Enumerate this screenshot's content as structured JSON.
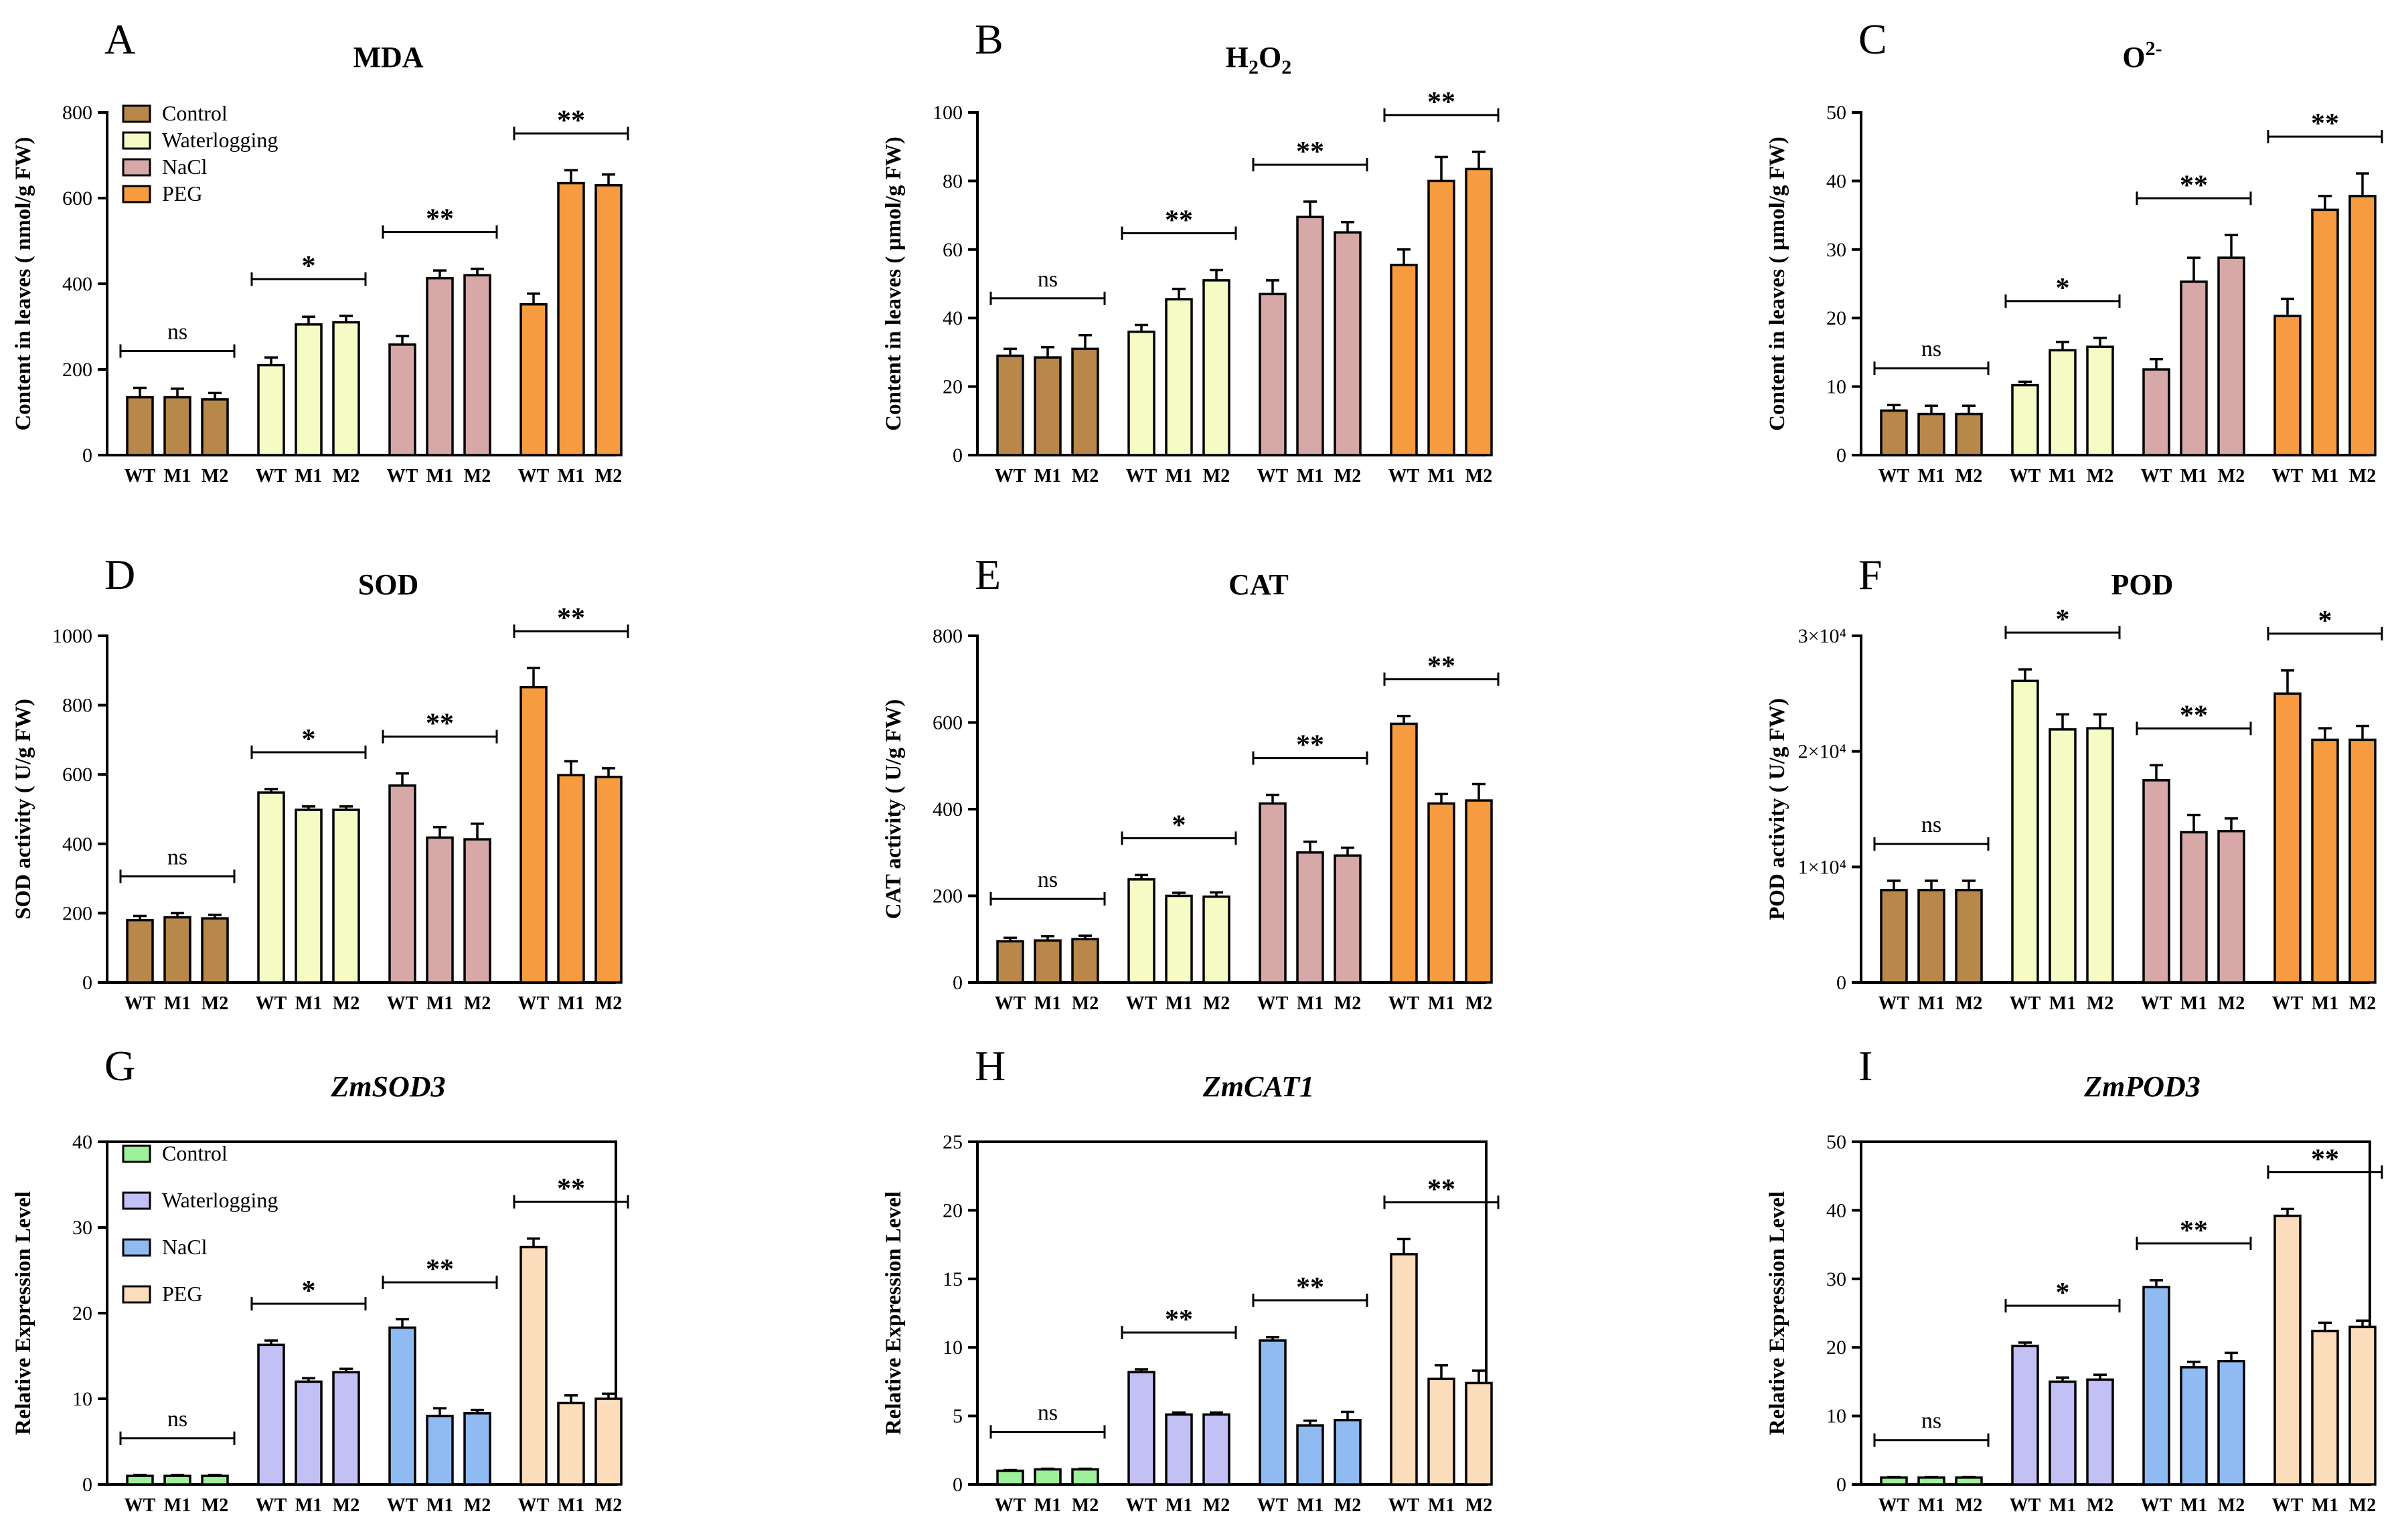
{
  "chart_data": [
    {
      "type": "bar",
      "panel": "A",
      "title": "MDA",
      "ylabel": "Content in leaves ( nmol/g FW)",
      "ylim": [
        0,
        800
      ],
      "yticks": [
        0,
        200,
        400,
        600,
        800
      ],
      "groups": [
        "Control",
        "Waterlogging",
        "NaCl",
        "PEG"
      ],
      "categories": [
        "WT",
        "M1",
        "M2"
      ],
      "values": [
        [
          135,
          135,
          130
        ],
        [
          210,
          305,
          310
        ],
        [
          258,
          413,
          420
        ],
        [
          352,
          635,
          630
        ]
      ],
      "errors": [
        [
          22,
          20,
          15
        ],
        [
          18,
          18,
          15
        ],
        [
          20,
          18,
          15
        ],
        [
          25,
          30,
          25
        ]
      ],
      "significance": [
        "ns",
        "*",
        "**",
        "**"
      ],
      "legend": [
        "Control",
        "Waterlogging",
        "NaCl",
        "PEG"
      ]
    },
    {
      "type": "bar",
      "panel": "B",
      "title": "H2O2",
      "title_main": "H",
      "title_sub1": "2",
      "title_mid": "O",
      "title_sub2": "2",
      "ylabel": "Content in leaves ( µmol/g FW)",
      "ylim": [
        0,
        100
      ],
      "yticks": [
        0,
        20,
        40,
        60,
        80,
        100
      ],
      "groups": [
        "Control",
        "Waterlogging",
        "NaCl",
        "PEG"
      ],
      "categories": [
        "WT",
        "M1",
        "M2"
      ],
      "values": [
        [
          29,
          28.5,
          31
        ],
        [
          36,
          45.5,
          51
        ],
        [
          47,
          69.5,
          65
        ],
        [
          55.5,
          80,
          83.5
        ]
      ],
      "errors": [
        [
          2,
          3,
          4
        ],
        [
          2,
          3,
          3
        ],
        [
          4,
          4.5,
          3
        ],
        [
          4.5,
          7,
          5
        ]
      ],
      "significance": [
        "ns",
        "**",
        "**",
        "**"
      ]
    },
    {
      "type": "bar",
      "panel": "C",
      "title": "O2-",
      "title_main": "O",
      "title_sup": "2-",
      "ylabel": "Content in leaves ( µmol/g FW)",
      "ylim": [
        0,
        50
      ],
      "yticks": [
        0,
        10,
        20,
        30,
        40,
        50
      ],
      "groups": [
        "Control",
        "Waterlogging",
        "NaCl",
        "PEG"
      ],
      "categories": [
        "WT",
        "M1",
        "M2"
      ],
      "values": [
        [
          6.5,
          6,
          6
        ],
        [
          10.2,
          15.3,
          15.8
        ],
        [
          12.5,
          25.3,
          28.8
        ],
        [
          20.3,
          35.8,
          37.8
        ]
      ],
      "errors": [
        [
          0.8,
          1.2,
          1.2
        ],
        [
          0.5,
          1.2,
          1.3
        ],
        [
          1.5,
          3.5,
          3.3
        ],
        [
          2.5,
          2,
          3.3
        ]
      ],
      "significance": [
        "ns",
        "*",
        "**",
        "**"
      ]
    },
    {
      "type": "bar",
      "panel": "D",
      "title": "SOD",
      "ylabel": "SOD activity ( U/g FW)",
      "ylim": [
        0,
        1000
      ],
      "yticks": [
        0,
        200,
        400,
        600,
        800,
        1000
      ],
      "groups": [
        "Control",
        "Waterlogging",
        "NaCl",
        "PEG"
      ],
      "categories": [
        "WT",
        "M1",
        "M2"
      ],
      "values": [
        [
          180,
          188,
          185
        ],
        [
          548,
          498,
          498
        ],
        [
          568,
          418,
          413
        ],
        [
          852,
          598,
          593
        ]
      ],
      "errors": [
        [
          12,
          12,
          10
        ],
        [
          10,
          10,
          10
        ],
        [
          35,
          30,
          45
        ],
        [
          55,
          40,
          25
        ]
      ],
      "significance": [
        "ns",
        "*",
        "**",
        "**"
      ]
    },
    {
      "type": "bar",
      "panel": "E",
      "title": "CAT",
      "ylabel": "CAT activity ( U/g FW)",
      "ylim": [
        0,
        800
      ],
      "yticks": [
        0,
        200,
        400,
        600,
        800
      ],
      "groups": [
        "Control",
        "Waterlogging",
        "NaCl",
        "PEG"
      ],
      "categories": [
        "WT",
        "M1",
        "M2"
      ],
      "values": [
        [
          95,
          97,
          100
        ],
        [
          238,
          200,
          198
        ],
        [
          413,
          300,
          293
        ],
        [
          597,
          413,
          420
        ]
      ],
      "errors": [
        [
          8,
          10,
          8
        ],
        [
          10,
          7,
          10
        ],
        [
          20,
          25,
          18
        ],
        [
          18,
          22,
          38
        ]
      ],
      "significance": [
        "ns",
        "*",
        "**",
        "**"
      ]
    },
    {
      "type": "bar",
      "panel": "F",
      "title": "POD",
      "ylabel": "POD activity ( U/g FW)",
      "ylim": [
        0,
        30000
      ],
      "yticks": [
        0,
        10000,
        20000,
        30000
      ],
      "ytick_labels": [
        "0",
        "1×10⁴",
        "2×10⁴",
        "3×10⁴"
      ],
      "groups": [
        "Control",
        "Waterlogging",
        "NaCl",
        "PEG"
      ],
      "categories": [
        "WT",
        "M1",
        "M2"
      ],
      "values": [
        [
          8000,
          8000,
          8000
        ],
        [
          26100,
          21900,
          22000
        ],
        [
          17500,
          13000,
          13100
        ],
        [
          25000,
          21000,
          21000
        ]
      ],
      "errors": [
        [
          800,
          800,
          800
        ],
        [
          1000,
          1300,
          1200
        ],
        [
          1300,
          1500,
          1100
        ],
        [
          2000,
          1000,
          1200
        ]
      ],
      "significance": [
        "ns",
        "*",
        "**",
        "*"
      ]
    },
    {
      "type": "bar",
      "panel": "G",
      "title": "ZmSOD3",
      "title_italic": true,
      "ylabel": "Relative Expression Level",
      "ylim": [
        0,
        40
      ],
      "yticks": [
        0,
        10,
        20,
        30,
        40
      ],
      "boxed": true,
      "groups": [
        "Control",
        "Waterlogging",
        "NaCl",
        "PEG"
      ],
      "categories": [
        "WT",
        "M1",
        "M2"
      ],
      "values": [
        [
          1,
          1,
          1
        ],
        [
          16.3,
          12,
          13.1
        ],
        [
          18.3,
          8,
          8.3
        ],
        [
          27.7,
          9.5,
          10
        ]
      ],
      "errors": [
        [
          0.1,
          0.1,
          0.1
        ],
        [
          0.5,
          0.4,
          0.4
        ],
        [
          1,
          0.9,
          0.4
        ],
        [
          1,
          0.9,
          0.6
        ]
      ],
      "significance": [
        "ns",
        "*",
        "**",
        "**"
      ],
      "legend": [
        "Control",
        "Waterlogging",
        "NaCl",
        "PEG"
      ]
    },
    {
      "type": "bar",
      "panel": "H",
      "title": "ZmCAT1",
      "title_italic": true,
      "ylabel": "Relative Expression Level",
      "ylim": [
        0,
        25
      ],
      "yticks": [
        0,
        5,
        10,
        15,
        20,
        25
      ],
      "boxed": true,
      "groups": [
        "Control",
        "Waterlogging",
        "NaCl",
        "PEG"
      ],
      "categories": [
        "WT",
        "M1",
        "M2"
      ],
      "values": [
        [
          1,
          1.1,
          1.1
        ],
        [
          8.2,
          5.1,
          5.1
        ],
        [
          10.5,
          4.3,
          4.7
        ],
        [
          16.8,
          7.7,
          7.4
        ]
      ],
      "errors": [
        [
          0.05,
          0.05,
          0.05
        ],
        [
          0.2,
          0.15,
          0.15
        ],
        [
          0.25,
          0.35,
          0.6
        ],
        [
          1.1,
          1,
          0.9
        ]
      ],
      "significance": [
        "ns",
        "**",
        "**",
        "**"
      ]
    },
    {
      "type": "bar",
      "panel": "I",
      "title": "ZmPOD3",
      "title_italic": true,
      "ylabel": "Relative Expression Level",
      "ylim": [
        0,
        50
      ],
      "yticks": [
        0,
        10,
        20,
        30,
        40,
        50
      ],
      "boxed": true,
      "groups": [
        "Control",
        "Waterlogging",
        "NaCl",
        "PEG"
      ],
      "categories": [
        "WT",
        "M1",
        "M2"
      ],
      "values": [
        [
          1,
          1,
          1
        ],
        [
          20.2,
          15,
          15.3
        ],
        [
          28.8,
          17.1,
          18
        ],
        [
          39.2,
          22.4,
          23
        ]
      ],
      "errors": [
        [
          0.1,
          0.1,
          0.1
        ],
        [
          0.5,
          0.6,
          0.7
        ],
        [
          1,
          0.8,
          1.2
        ],
        [
          1,
          1.2,
          0.9
        ]
      ],
      "significance": [
        "ns",
        "*",
        "**",
        "**"
      ]
    }
  ],
  "colors": {
    "top": [
      "#b8884a",
      "#f6fac4",
      "#d6a8a8",
      "#f69b3f"
    ],
    "bottom": [
      "#9ff09a",
      "#c2c0f4",
      "#90bbf2",
      "#fbdcbb"
    ]
  }
}
